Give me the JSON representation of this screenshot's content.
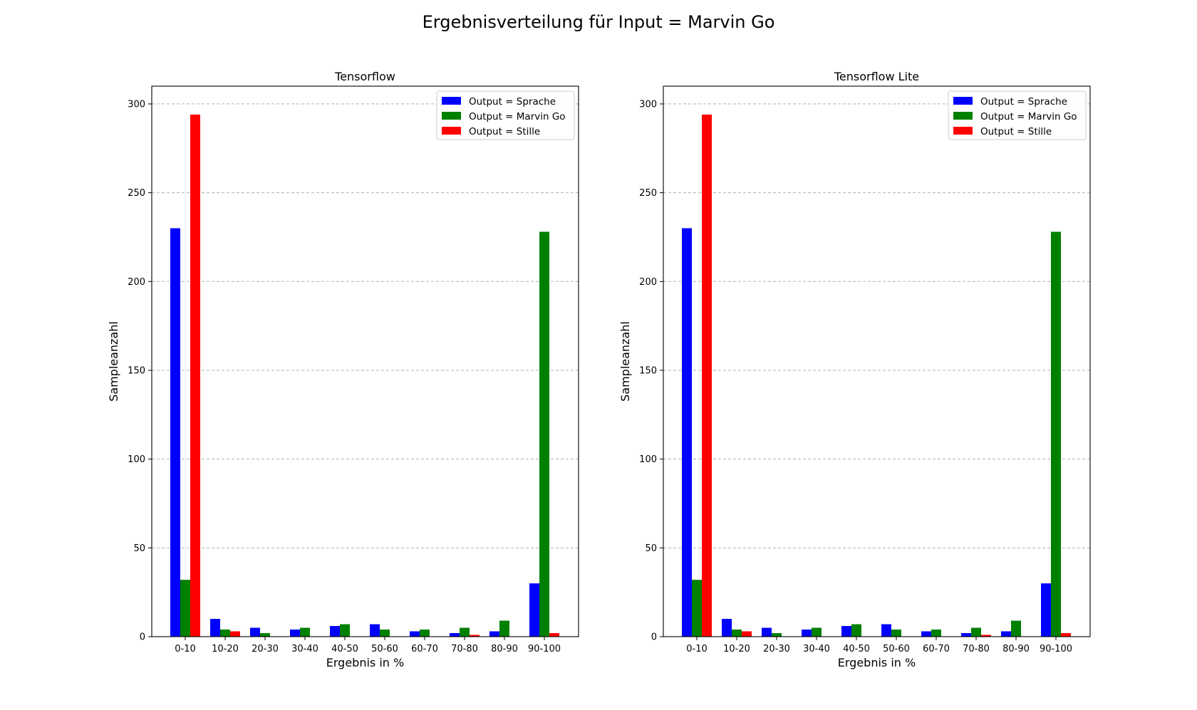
{
  "figure": {
    "title": "Ergebnisverteilung für Input = Marvin Go"
  },
  "chart_data": [
    {
      "type": "bar",
      "title": "Tensorflow",
      "xlabel": "Ergebnis in %",
      "ylabel": "Sampleanzahl",
      "ylim": [
        0,
        310
      ],
      "yticks": [
        0,
        50,
        100,
        150,
        200,
        250,
        300
      ],
      "grid": "y-dashed",
      "legend_position": "top-right",
      "categories": [
        "0-10",
        "10-20",
        "20-30",
        "30-40",
        "40-50",
        "50-60",
        "60-70",
        "70-80",
        "80-90",
        "90-100"
      ],
      "series": [
        {
          "name": "Output = Sprache",
          "color": "#0000ff",
          "values": [
            230,
            10,
            5,
            4,
            6,
            7,
            3,
            2,
            3,
            30
          ]
        },
        {
          "name": "Output = Marvin Go",
          "color": "#008000",
          "values": [
            32,
            4,
            2,
            5,
            7,
            4,
            4,
            5,
            9,
            228
          ]
        },
        {
          "name": "Output = Stille",
          "color": "#ff0000",
          "values": [
            294,
            3,
            0,
            0,
            0,
            0,
            0,
            1,
            0,
            2
          ]
        }
      ]
    },
    {
      "type": "bar",
      "title": "Tensorflow Lite",
      "xlabel": "Ergebnis in %",
      "ylabel": "Sampleanzahl",
      "ylim": [
        0,
        310
      ],
      "yticks": [
        0,
        50,
        100,
        150,
        200,
        250,
        300
      ],
      "grid": "y-dashed",
      "legend_position": "top-right",
      "categories": [
        "0-10",
        "10-20",
        "20-30",
        "30-40",
        "40-50",
        "50-60",
        "60-70",
        "70-80",
        "80-90",
        "90-100"
      ],
      "series": [
        {
          "name": "Output = Sprache",
          "color": "#0000ff",
          "values": [
            230,
            10,
            5,
            4,
            6,
            7,
            3,
            2,
            3,
            30
          ]
        },
        {
          "name": "Output = Marvin Go",
          "color": "#008000",
          "values": [
            32,
            4,
            2,
            5,
            7,
            4,
            4,
            5,
            9,
            228
          ]
        },
        {
          "name": "Output = Stille",
          "color": "#ff0000",
          "values": [
            294,
            3,
            0,
            0,
            0,
            0,
            0,
            1,
            0,
            2
          ]
        }
      ]
    }
  ]
}
